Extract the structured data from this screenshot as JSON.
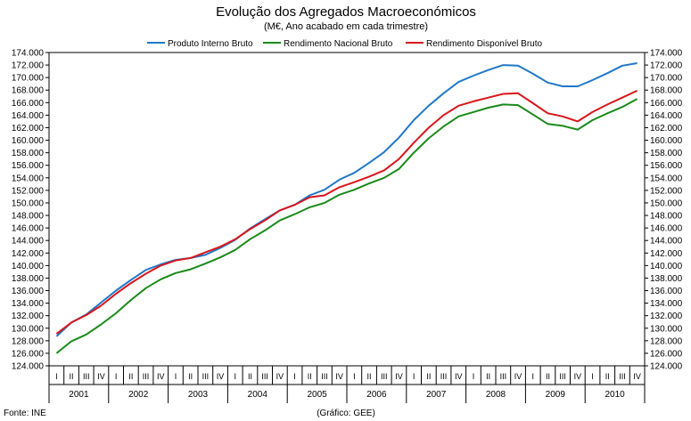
{
  "chart_data": {
    "type": "line",
    "title": "Evolução dos Agregados Macroeconómicos",
    "subtitle": "(M€, Ano acabado em cada trimestre)",
    "source": "Fonte: INE",
    "credit": "(Gráfico: GEE)",
    "ylim": [
      124000,
      174000
    ],
    "y_ticks": [
      "124.000",
      "126.000",
      "128.000",
      "130.000",
      "132.000",
      "134.000",
      "136.000",
      "138.000",
      "140.000",
      "142.000",
      "144.000",
      "146.000",
      "148.000",
      "150.000",
      "152.000",
      "154.000",
      "156.000",
      "158.000",
      "160.000",
      "162.000",
      "164.000",
      "166.000",
      "168.000",
      "170.000",
      "172.000",
      "174.000"
    ],
    "quarter_labels": [
      "I",
      "II",
      "III",
      "IV"
    ],
    "years": [
      "2001",
      "2002",
      "2003",
      "2004",
      "2005",
      "2006",
      "2007",
      "2008",
      "2009",
      "2010"
    ],
    "series": [
      {
        "name": "Produto Interno Bruto",
        "color": "#1f78c8",
        "values": [
          128700,
          130900,
          132200,
          134100,
          136000,
          137700,
          139300,
          140200,
          140900,
          141200,
          141700,
          142800,
          144100,
          145900,
          147400,
          148800,
          149700,
          151200,
          152100,
          153700,
          154800,
          156400,
          158100,
          160400,
          163200,
          165500,
          167500,
          169300,
          170300,
          171200,
          172000,
          171900,
          170600,
          169200,
          168600,
          168600,
          169600,
          170700,
          171900,
          172300
        ]
      },
      {
        "name": "Rendimento Nacional Bruto",
        "color": "#1a8a1a",
        "values": [
          126000,
          127900,
          129000,
          130600,
          132400,
          134500,
          136400,
          137800,
          138800,
          139400,
          140300,
          141300,
          142500,
          144200,
          145600,
          147200,
          148200,
          149300,
          150000,
          151300,
          152100,
          153100,
          154000,
          155400,
          158000,
          160300,
          162200,
          163800,
          164500,
          165200,
          165700,
          165600,
          164100,
          162600,
          162300,
          161700,
          163200,
          164300,
          165300,
          166600
        ]
      },
      {
        "name": "Rendimento Disponível Bruto",
        "color": "#d8161c",
        "values": [
          129100,
          130900,
          132100,
          133600,
          135500,
          137200,
          138700,
          140000,
          140800,
          141200,
          142100,
          143000,
          144200,
          145800,
          147200,
          148800,
          149700,
          150900,
          151200,
          152500,
          153300,
          154200,
          155200,
          157000,
          159600,
          162000,
          164000,
          165500,
          166200,
          166800,
          167400,
          167500,
          165900,
          164300,
          163800,
          163000,
          164500,
          165700,
          166800,
          167900
        ]
      }
    ]
  }
}
